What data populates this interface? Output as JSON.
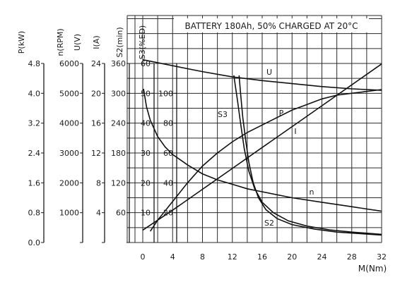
{
  "chart_data": {
    "type": "line",
    "title": "BATTERY 180Ah, 50% CHARGED AT 20°C",
    "xlabel": "M(Nm)",
    "xlim": [
      0,
      32
    ],
    "x_ticks": [
      "0",
      "4",
      "8",
      "12",
      "16",
      "20",
      "24",
      "28",
      "32"
    ],
    "grid": true,
    "left_axes": [
      {
        "label": "P(kW)",
        "ticks": [
          "0.0",
          "0.8",
          "1.6",
          "2.4",
          "3.2",
          "4.0",
          "4.8"
        ]
      },
      {
        "label": "n(RPM)",
        "ticks": [
          "",
          "1000",
          "2000",
          "3000",
          "4000",
          "5000",
          "6000"
        ]
      },
      {
        "label": "U(V)",
        "ticks": [
          "",
          "4",
          "8",
          "12",
          "16",
          "20",
          "24"
        ]
      },
      {
        "label": "I(A)",
        "ticks": [
          "",
          "60",
          "120",
          "180",
          "240",
          "300",
          "360"
        ]
      },
      {
        "label": "S2(min)",
        "ticks": [
          "",
          "10",
          "20",
          "30",
          "40",
          "50",
          "60"
        ]
      },
      {
        "label": "S3(%ED)",
        "ticks": [
          "",
          "20",
          "40",
          "60",
          "80",
          "100",
          ""
        ]
      }
    ],
    "series": [
      {
        "name": "U",
        "axis": "U(V)",
        "x": [
          0,
          4,
          8,
          12,
          16,
          20,
          24,
          28,
          32
        ],
        "y": [
          24.5,
          23.7,
          22.9,
          22.2,
          21.7,
          21.3,
          20.9,
          20.6,
          20.4
        ]
      },
      {
        "name": "P",
        "axis": "P(kW)",
        "x": [
          1,
          2,
          4,
          6,
          8,
          10,
          12,
          14,
          16,
          18,
          20,
          22,
          24,
          26,
          28,
          30,
          32
        ],
        "y": [
          0.3,
          0.6,
          1.1,
          1.6,
          2.05,
          2.4,
          2.7,
          2.95,
          3.15,
          3.35,
          3.55,
          3.7,
          3.85,
          3.95,
          4.0,
          4.05,
          4.1
        ]
      },
      {
        "name": "I",
        "axis": "I(A)",
        "x": [
          0,
          4,
          8,
          12,
          16,
          20,
          24,
          28,
          32
        ],
        "y": [
          25,
          65,
          107,
          149,
          191,
          233,
          275,
          317,
          359
        ]
      },
      {
        "name": "n",
        "axis": "n(RPM)",
        "x": [
          0.1,
          0.5,
          1,
          2,
          3,
          4,
          6,
          8,
          10,
          12,
          14,
          16,
          20,
          24,
          28,
          32
        ],
        "y": [
          5150,
          4550,
          4100,
          3550,
          3200,
          2950,
          2600,
          2300,
          2100,
          1950,
          1800,
          1700,
          1500,
          1350,
          1200,
          1050
        ]
      },
      {
        "name": "S2",
        "axis": "S2(min)",
        "x": [
          12.9,
          13.1,
          13.4,
          13.8,
          14.2,
          14.8,
          15.5,
          16.5,
          18,
          20,
          23,
          26,
          29,
          32
        ],
        "y": [
          56,
          50,
          42,
          34,
          27,
          20,
          15,
          11,
          8,
          6,
          4.5,
          3.5,
          3,
          2.5
        ]
      },
      {
        "name": "S3",
        "axis": "S3(%ED)",
        "x": [
          12.2,
          12.4,
          12.7,
          13.1,
          13.6,
          14.2,
          15,
          16,
          17.5,
          19.5,
          22,
          25,
          28,
          32
        ],
        "y": [
          112,
          105,
          95,
          80,
          63,
          48,
          36,
          27,
          20,
          14.5,
          11,
          8.5,
          7,
          5.5
        ]
      }
    ]
  }
}
